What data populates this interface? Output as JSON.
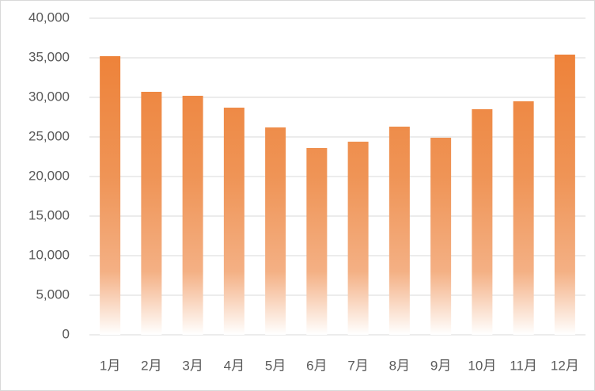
{
  "chart_data": {
    "type": "bar",
    "categories": [
      "1月",
      "2月",
      "3月",
      "4月",
      "5月",
      "6月",
      "7月",
      "8月",
      "9月",
      "10月",
      "11月",
      "12月"
    ],
    "values": [
      35200,
      30700,
      30200,
      28700,
      26200,
      23600,
      24400,
      26300,
      24900,
      28500,
      29500,
      35400
    ],
    "color": "#ED7D31",
    "ylim": [
      0,
      40000
    ],
    "yticks": [
      0,
      {
        "value": 5000,
        "label": "5,000"
      },
      {
        "value": 10000,
        "label": "10,000"
      },
      {
        "value": 15000,
        "label": "15,000"
      },
      {
        "value": 20000,
        "label": "20,000"
      },
      {
        "value": 25000,
        "label": "25,000"
      },
      {
        "value": 30000,
        "label": "30,000"
      },
      {
        "value": 35000,
        "label": "35,000"
      },
      {
        "value": 40000,
        "label": "40,000"
      }
    ],
    "grid": true
  }
}
